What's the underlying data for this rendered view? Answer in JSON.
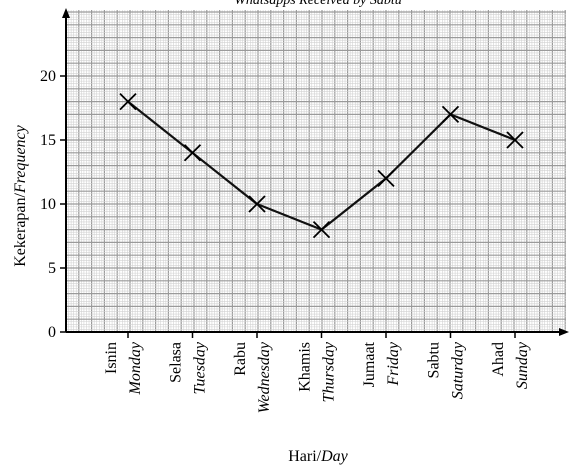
{
  "chart_data": {
    "type": "line",
    "title": "Whatsapps Received by Sabtu",
    "xlabel": {
      "malay": "Hari/",
      "english": "Day"
    },
    "ylabel": {
      "malay": "Kekerapan/",
      "english": "Frequency"
    },
    "categories": [
      {
        "malay": "Isnin",
        "english": "Monday"
      },
      {
        "malay": "Selasa",
        "english": "Tuesday"
      },
      {
        "malay": "Rabu",
        "english": "Wednesday"
      },
      {
        "malay": "Khamis",
        "english": "Thursday"
      },
      {
        "malay": "Jumaat",
        "english": "Friday"
      },
      {
        "malay": "Sabtu",
        "english": "Saturday"
      },
      {
        "malay": "Ahad",
        "english": "Sunday"
      }
    ],
    "values": [
      18,
      14,
      10,
      8,
      12,
      17,
      15
    ],
    "y_ticks": [
      "0",
      "5",
      "10",
      "15",
      "20"
    ],
    "ylim": [
      0,
      24
    ],
    "grid": true,
    "marker": "cross"
  }
}
